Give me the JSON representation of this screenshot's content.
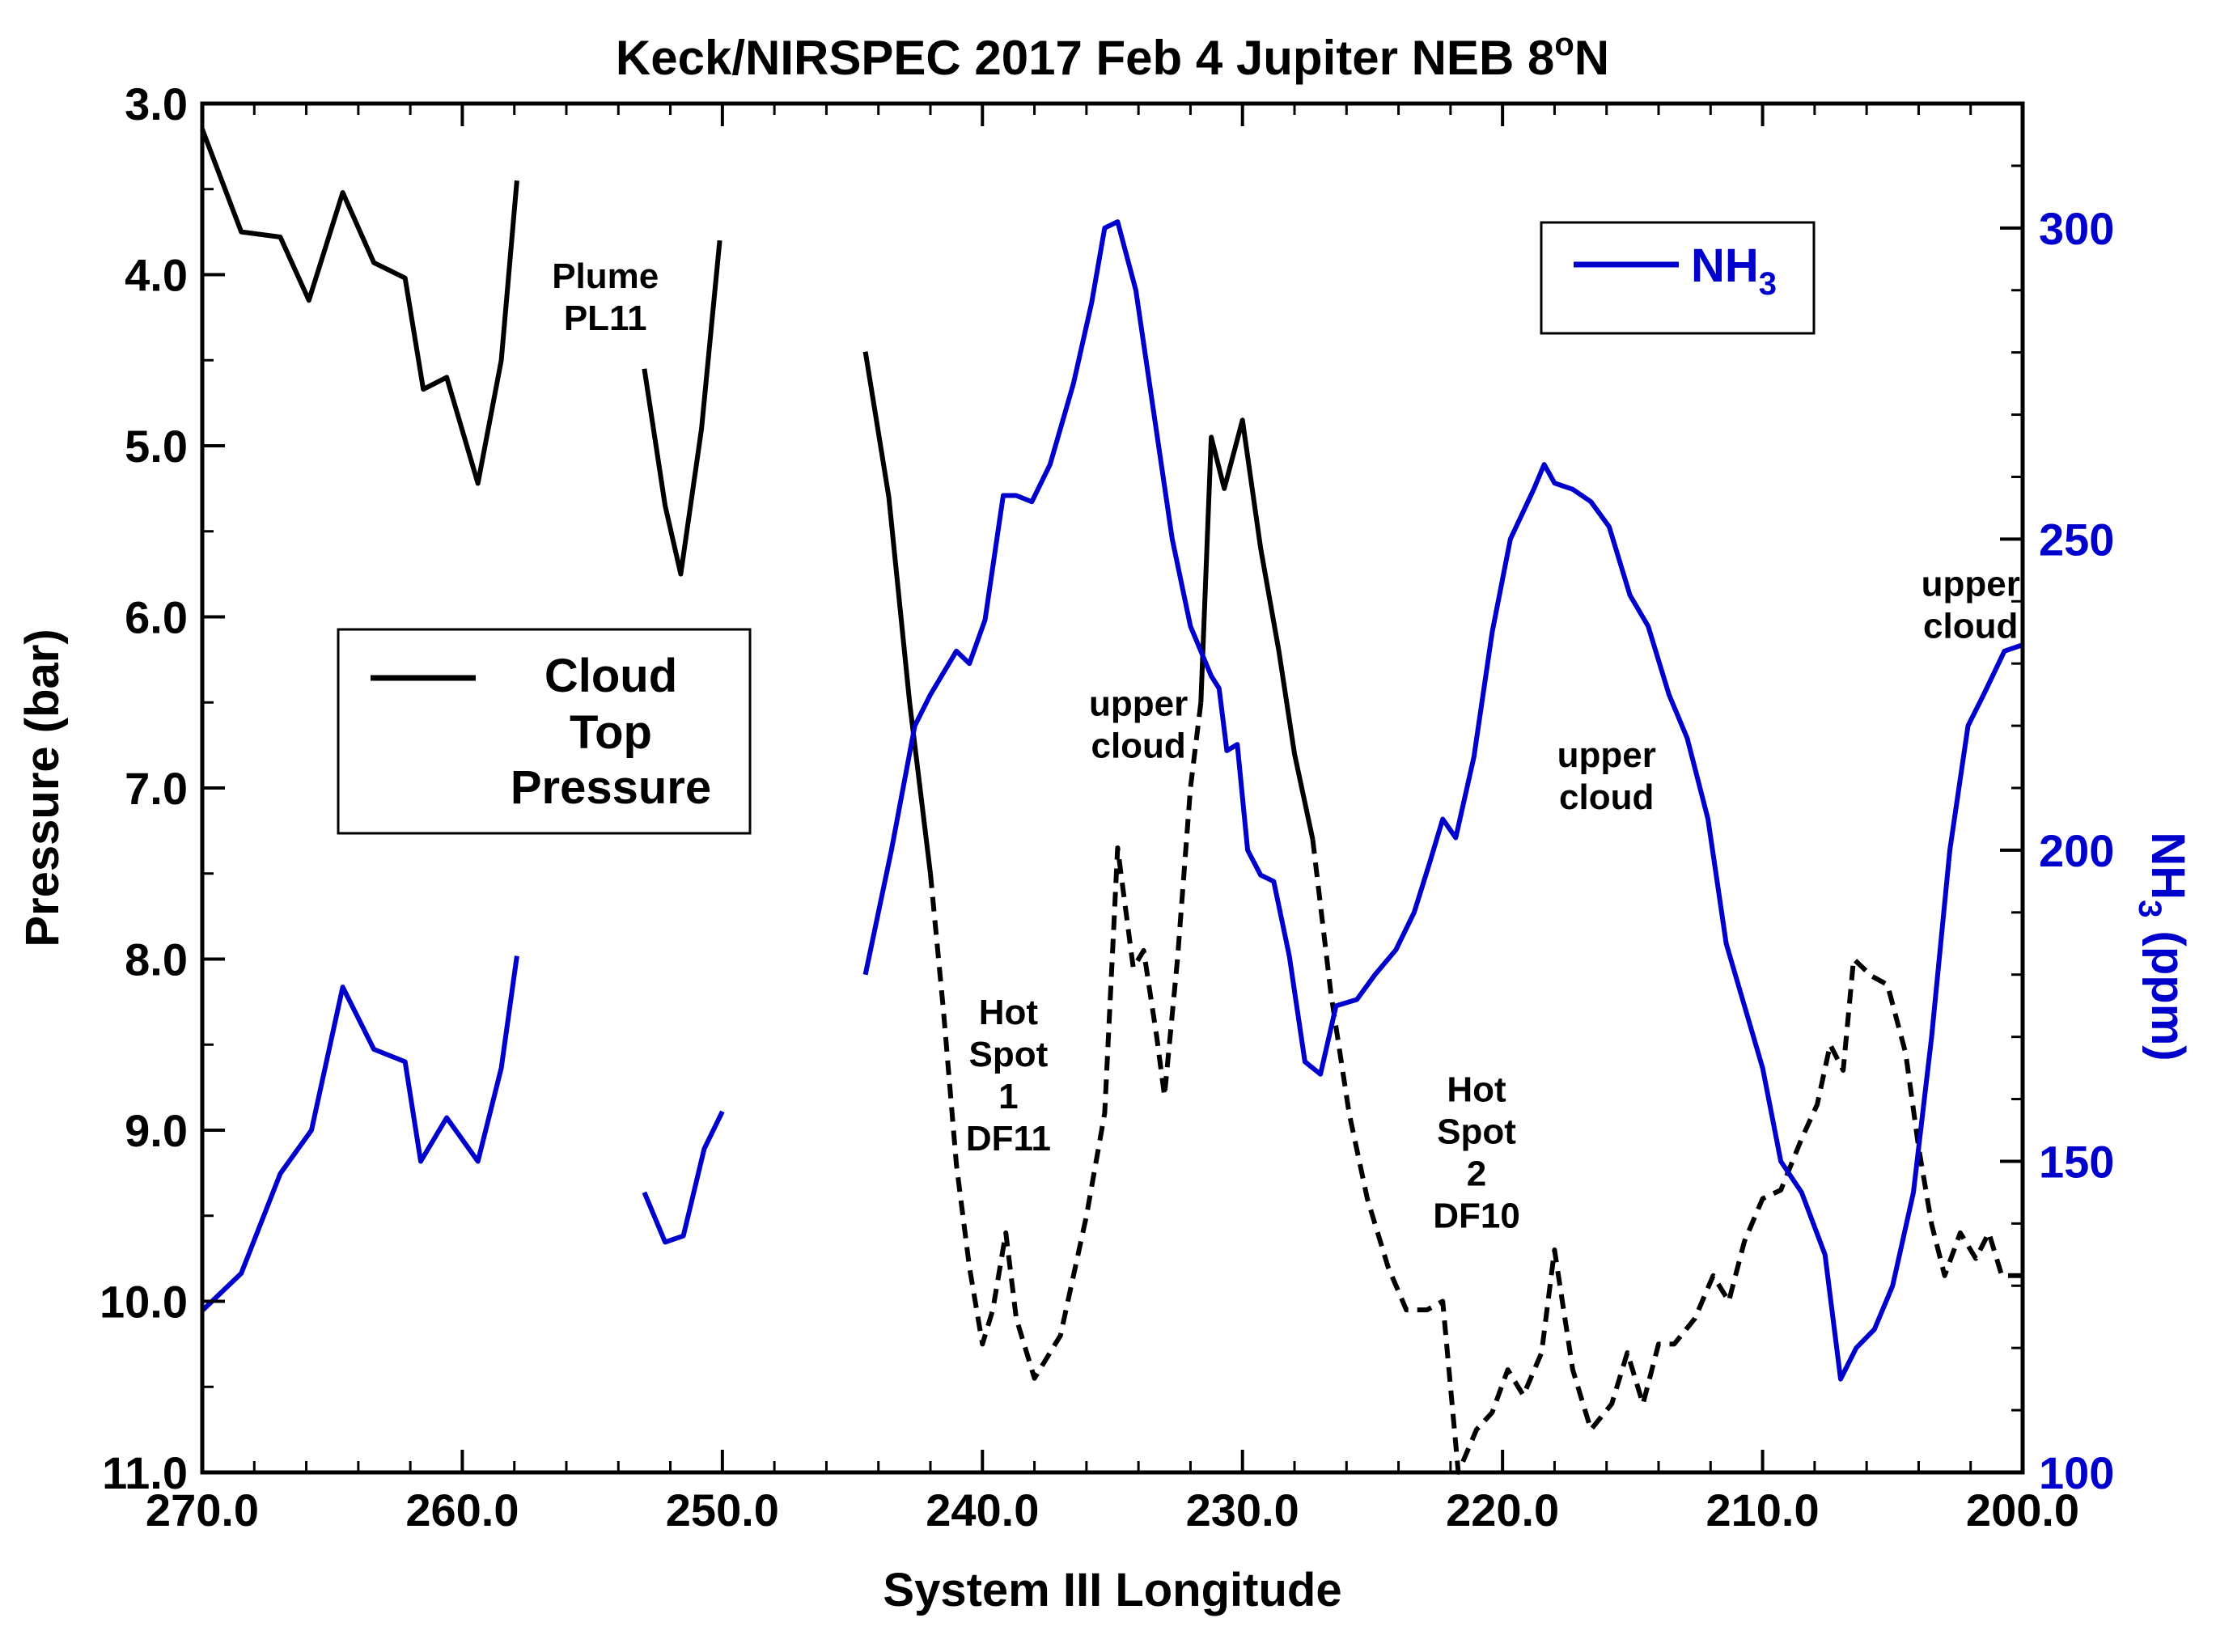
{
  "chart_data": {
    "type": "line",
    "title_main": "Keck/NIRSPEC 2017 Feb 4 Jupiter NEB 8",
    "title_sup": "o",
    "title_tail": "N",
    "xlabel": "System III Longitude",
    "ylabel_left": "Pressure (bar)",
    "ylabel_right_pre": "NH",
    "ylabel_right_sub": "3",
    "ylabel_right_post": " (ppm)",
    "xlim": [
      270,
      200
    ],
    "ylim_left": [
      3.0,
      11.0
    ],
    "ylim_left_inverted": true,
    "ylim_right": [
      100,
      320
    ],
    "x_ticks": [
      "270.0",
      "260.0",
      "250.0",
      "240.0",
      "230.0",
      "220.0",
      "210.0",
      "200.0"
    ],
    "x_tick_values": [
      270,
      260,
      250,
      240,
      230,
      220,
      210,
      200
    ],
    "y_left_ticks": [
      "3.0",
      "4.0",
      "5.0",
      "6.0",
      "7.0",
      "8.0",
      "9.0",
      "10.0",
      "11.0"
    ],
    "y_left_tick_values": [
      3,
      4,
      5,
      6,
      7,
      8,
      9,
      10,
      11
    ],
    "y_right_ticks": [
      "100",
      "150",
      "200",
      "250",
      "300"
    ],
    "y_right_tick_values": [
      100,
      150,
      200,
      250,
      300
    ],
    "legend_cloud": {
      "line1": "Cloud",
      "line2": "Top",
      "line3": "Pressure",
      "placement": "center-left"
    },
    "legend_nh3": {
      "label_pre": "NH",
      "label_sub": "3",
      "placement": "top-right"
    },
    "colors": {
      "cloud": "#000000",
      "nh3": "#0000cc",
      "axis_right": "#0000cc"
    },
    "annotations": [
      {
        "lines": [
          "Plume",
          "PL11"
        ],
        "x": 254.5,
        "y": 4.2
      },
      {
        "lines": [
          "upper",
          "cloud"
        ],
        "x": 234.0,
        "y": 6.7
      },
      {
        "lines": [
          "Hot",
          "Spot",
          "1",
          "DF11"
        ],
        "x": 239.0,
        "y": 8.75
      },
      {
        "lines": [
          "Hot",
          "Spot",
          "2",
          "DF10"
        ],
        "x": 221.0,
        "y": 9.2
      },
      {
        "lines": [
          "upper",
          "cloud"
        ],
        "x": 216.0,
        "y": 7.0
      },
      {
        "lines": [
          "upper",
          "cloud"
        ],
        "x": 202.0,
        "y": 6.0
      }
    ],
    "series": [
      {
        "name": "Cloud Top Pressure",
        "axis": "left",
        "style": "solid",
        "color": "#000000",
        "points": [
          [
            270.0,
            3.15
          ],
          [
            268.5,
            3.75
          ],
          [
            267.0,
            3.78
          ],
          [
            265.9,
            4.15
          ],
          [
            264.6,
            3.52
          ],
          [
            263.4,
            3.93
          ],
          [
            262.2,
            4.02
          ],
          [
            261.5,
            4.67
          ],
          [
            260.6,
            4.6
          ],
          [
            259.4,
            5.22
          ],
          [
            258.5,
            4.5
          ],
          [
            257.9,
            3.45
          ]
        ]
      },
      {
        "name": "Cloud Top Pressure",
        "axis": "left",
        "style": "solid",
        "color": "#000000",
        "points": [
          [
            253.0,
            4.55
          ],
          [
            252.2,
            5.35
          ],
          [
            251.6,
            5.75
          ],
          [
            250.8,
            4.9
          ],
          [
            250.1,
            3.8
          ]
        ]
      },
      {
        "name": "Cloud Top Pressure",
        "axis": "left",
        "style": "solid",
        "color": "#000000",
        "points": [
          [
            244.5,
            4.45
          ],
          [
            243.6,
            5.3
          ],
          [
            242.8,
            6.5
          ],
          [
            242.0,
            7.5
          ]
        ]
      },
      {
        "name": "Cloud Top Pressure (hot spot)",
        "axis": "left",
        "style": "dashed",
        "color": "#000000",
        "points": [
          [
            242.0,
            7.5
          ],
          [
            241.5,
            8.3
          ],
          [
            241.0,
            9.2
          ],
          [
            240.5,
            9.8
          ],
          [
            240.0,
            10.25
          ],
          [
            239.6,
            10.05
          ],
          [
            239.1,
            9.6
          ],
          [
            238.7,
            10.1
          ],
          [
            238.0,
            10.45
          ],
          [
            237.0,
            10.2
          ],
          [
            236.0,
            9.5
          ],
          [
            235.3,
            8.9
          ],
          [
            234.8,
            7.35
          ],
          [
            234.2,
            8.05
          ],
          [
            233.8,
            7.95
          ],
          [
            233.3,
            8.45
          ],
          [
            233.0,
            8.8
          ],
          [
            232.5,
            8.0
          ],
          [
            232.0,
            7.0
          ],
          [
            231.6,
            6.5
          ]
        ]
      },
      {
        "name": "Cloud Top Pressure",
        "axis": "left",
        "style": "solid",
        "color": "#000000",
        "points": [
          [
            231.6,
            6.5
          ],
          [
            231.2,
            4.95
          ],
          [
            230.7,
            5.25
          ],
          [
            230.0,
            4.85
          ],
          [
            229.3,
            5.6
          ],
          [
            228.6,
            6.2
          ],
          [
            228.0,
            6.8
          ],
          [
            227.3,
            7.3
          ]
        ]
      },
      {
        "name": "Cloud Top Pressure (hot spot)",
        "axis": "left",
        "style": "dashed",
        "color": "#000000",
        "points": [
          [
            227.3,
            7.3
          ],
          [
            226.6,
            8.2
          ],
          [
            225.9,
            8.9
          ],
          [
            225.2,
            9.4
          ],
          [
            224.4,
            9.8
          ],
          [
            223.7,
            10.05
          ],
          [
            222.9,
            10.05
          ],
          [
            222.3,
            10.0
          ],
          [
            221.7,
            11.0
          ],
          [
            221.0,
            10.75
          ],
          [
            220.4,
            10.65
          ],
          [
            219.8,
            10.4
          ],
          [
            219.2,
            10.55
          ],
          [
            218.5,
            10.3
          ],
          [
            218.0,
            9.7
          ],
          [
            217.3,
            10.4
          ],
          [
            216.6,
            10.75
          ],
          [
            215.8,
            10.6
          ],
          [
            215.2,
            10.3
          ],
          [
            214.6,
            10.6
          ],
          [
            214.0,
            10.25
          ],
          [
            213.4,
            10.25
          ],
          [
            212.6,
            10.1
          ],
          [
            211.9,
            9.85
          ],
          [
            211.3,
            10.0
          ],
          [
            210.7,
            9.65
          ],
          [
            210.0,
            9.4
          ],
          [
            209.3,
            9.35
          ],
          [
            208.5,
            9.05
          ],
          [
            207.9,
            8.85
          ],
          [
            207.4,
            8.5
          ],
          [
            206.9,
            8.65
          ],
          [
            206.5,
            8.0
          ],
          [
            205.8,
            8.1
          ],
          [
            205.2,
            8.15
          ],
          [
            204.5,
            8.55
          ],
          [
            204.0,
            9.1
          ],
          [
            203.5,
            9.55
          ],
          [
            203.0,
            9.85
          ],
          [
            202.4,
            9.6
          ],
          [
            201.8,
            9.75
          ],
          [
            201.3,
            9.6
          ],
          [
            200.8,
            9.85
          ],
          [
            200.0,
            9.85
          ]
        ]
      },
      {
        "name": "NH3",
        "axis": "right",
        "style": "solid",
        "color": "#0000cc",
        "points": [
          [
            270.0,
            126
          ],
          [
            268.5,
            132
          ],
          [
            267.0,
            148
          ],
          [
            265.8,
            155
          ],
          [
            264.6,
            178
          ],
          [
            263.4,
            168
          ],
          [
            262.2,
            166
          ],
          [
            261.6,
            150
          ],
          [
            260.6,
            157
          ],
          [
            259.4,
            150
          ],
          [
            258.5,
            165
          ],
          [
            257.9,
            183
          ]
        ]
      },
      {
        "name": "NH3",
        "axis": "right",
        "style": "solid",
        "color": "#0000cc",
        "points": [
          [
            253.0,
            145
          ],
          [
            252.2,
            137
          ],
          [
            251.5,
            138
          ],
          [
            250.7,
            152
          ],
          [
            250.0,
            158
          ]
        ]
      },
      {
        "name": "NH3",
        "axis": "right",
        "style": "solid",
        "color": "#0000cc",
        "points": [
          [
            244.5,
            180
          ],
          [
            243.5,
            200
          ],
          [
            242.6,
            220
          ],
          [
            242.0,
            225
          ],
          [
            241.0,
            232
          ],
          [
            240.5,
            230
          ],
          [
            239.9,
            237
          ],
          [
            239.2,
            257
          ],
          [
            238.7,
            257
          ],
          [
            238.1,
            256
          ],
          [
            237.4,
            262
          ],
          [
            236.5,
            275
          ],
          [
            235.8,
            288
          ],
          [
            235.3,
            300
          ],
          [
            234.8,
            301
          ],
          [
            234.1,
            290
          ],
          [
            233.4,
            270
          ],
          [
            232.7,
            250
          ],
          [
            232.0,
            236
          ],
          [
            231.2,
            228
          ],
          [
            230.9,
            226
          ],
          [
            230.6,
            216
          ],
          [
            230.2,
            217
          ],
          [
            229.8,
            200
          ],
          [
            229.3,
            196
          ],
          [
            228.8,
            195
          ],
          [
            228.2,
            183
          ],
          [
            227.6,
            166
          ],
          [
            227.0,
            164
          ],
          [
            226.4,
            175
          ],
          [
            225.6,
            176
          ],
          [
            224.9,
            180
          ],
          [
            224.1,
            184
          ],
          [
            223.4,
            190
          ],
          [
            222.8,
            198
          ],
          [
            222.3,
            205
          ],
          [
            221.8,
            202
          ],
          [
            221.1,
            215
          ],
          [
            220.4,
            235
          ],
          [
            219.7,
            250
          ],
          [
            218.8,
            258
          ],
          [
            218.4,
            262
          ],
          [
            218.0,
            259
          ],
          [
            217.3,
            258
          ],
          [
            216.6,
            256
          ],
          [
            215.9,
            252
          ],
          [
            215.1,
            241
          ],
          [
            214.4,
            236
          ],
          [
            213.6,
            225
          ],
          [
            212.9,
            218
          ],
          [
            212.1,
            205
          ],
          [
            211.4,
            185
          ],
          [
            210.7,
            175
          ],
          [
            210.0,
            165
          ],
          [
            209.3,
            150
          ],
          [
            208.5,
            145
          ],
          [
            207.6,
            135
          ],
          [
            207.0,
            115
          ],
          [
            206.4,
            120
          ],
          [
            205.7,
            123
          ],
          [
            205.0,
            130
          ],
          [
            204.2,
            145
          ],
          [
            203.5,
            170
          ],
          [
            202.8,
            200
          ],
          [
            202.1,
            220
          ],
          [
            201.5,
            225
          ],
          [
            200.7,
            232
          ],
          [
            200.0,
            233
          ]
        ]
      }
    ]
  }
}
